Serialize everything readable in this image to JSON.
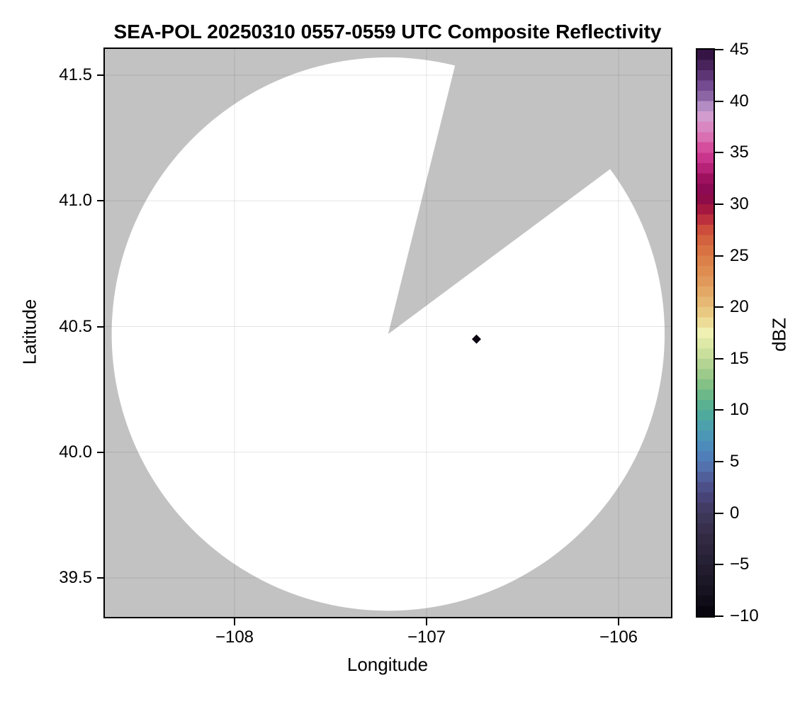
{
  "figure": {
    "title": "SEA-POL 20250310 0557-0559 UTC Composite Reflectivity",
    "x_axis": {
      "label": "Longitude",
      "tick_labels": [
        "−108",
        "−107",
        "−106"
      ]
    },
    "y_axis": {
      "label": "Latitude",
      "tick_labels": [
        "41.5",
        "41.0",
        "40.5",
        "40.0",
        "39.5"
      ]
    },
    "colorbar": {
      "label": "dBZ",
      "tick_labels": [
        "45",
        "40",
        "35",
        "30",
        "25",
        "20",
        "15",
        "10",
        "5",
        "0",
        "−5",
        "−10"
      ]
    },
    "colors": {
      "no_data_gray": "#c2c2c2",
      "coverage_white": "#ffffff",
      "gridline": "rgba(0,0,0,0.10)",
      "spine": "#000000",
      "echo_point": "#0b0612"
    }
  },
  "chart_data": {
    "type": "heatmap",
    "title": "SEA-POL 20250310 0557-0559 UTC Composite Reflectivity",
    "xlabel": "Longitude",
    "ylabel": "Latitude",
    "xlim": [
      -108.68,
      -105.73
    ],
    "ylim": [
      39.34,
      41.6
    ],
    "xticks": [
      -108,
      -107,
      -106
    ],
    "yticks": [
      41.5,
      41.0,
      40.5,
      40.0,
      39.5
    ],
    "grid": true,
    "colorbar": {
      "label": "dBZ",
      "vmin": -10,
      "vmax": 45,
      "ticks": [
        45,
        40,
        35,
        30,
        25,
        20,
        15,
        10,
        5,
        0,
        -5,
        -10
      ],
      "n_levels": 55,
      "cmap_anchors": [
        [
          -10,
          "#05030c"
        ],
        [
          -8,
          "#14101c"
        ],
        [
          -6,
          "#1f1a2a"
        ],
        [
          -4,
          "#2a2338"
        ],
        [
          -2,
          "#342c47"
        ],
        [
          0,
          "#3f395c"
        ],
        [
          1.5,
          "#484377"
        ],
        [
          3,
          "#4f5591"
        ],
        [
          4.5,
          "#5271ad"
        ],
        [
          6,
          "#4d85bd"
        ],
        [
          8,
          "#4b9db4"
        ],
        [
          10,
          "#50ad95"
        ],
        [
          12,
          "#76bc83"
        ],
        [
          14,
          "#a8ce8e"
        ],
        [
          16,
          "#d5e4a1"
        ],
        [
          17.5,
          "#eff0b2"
        ],
        [
          19,
          "#ead28a"
        ],
        [
          21,
          "#e5af6b"
        ],
        [
          23,
          "#e09255"
        ],
        [
          25,
          "#da7a46"
        ],
        [
          27,
          "#d15a3b"
        ],
        [
          28,
          "#c73f3a"
        ],
        [
          29,
          "#b0213f"
        ],
        [
          30,
          "#970f40"
        ],
        [
          31,
          "#85084e"
        ],
        [
          32.5,
          "#9e115f"
        ],
        [
          34,
          "#c02b84"
        ],
        [
          35,
          "#d13e93"
        ],
        [
          36.5,
          "#da6fb2"
        ],
        [
          38,
          "#d793c8"
        ],
        [
          39,
          "#cda4d6"
        ],
        [
          40,
          "#9673ae"
        ],
        [
          41.5,
          "#744a90"
        ],
        [
          43,
          "#512a67"
        ],
        [
          45,
          "#2b0c3a"
        ]
      ]
    },
    "radar_coverage": {
      "center_lon": -107.2,
      "center_lat": 40.47,
      "radius_lon_deg": 1.44,
      "radius_lat_deg": 1.1,
      "blocked_sector_azimuth_deg": [
        14.0,
        53.4
      ],
      "note": "white disc = scanned area, gray = no data"
    },
    "echoes": [
      {
        "lon": -106.74,
        "lat": 40.45,
        "approx_dbz": -9,
        "marker": "small dark diamond"
      }
    ]
  }
}
